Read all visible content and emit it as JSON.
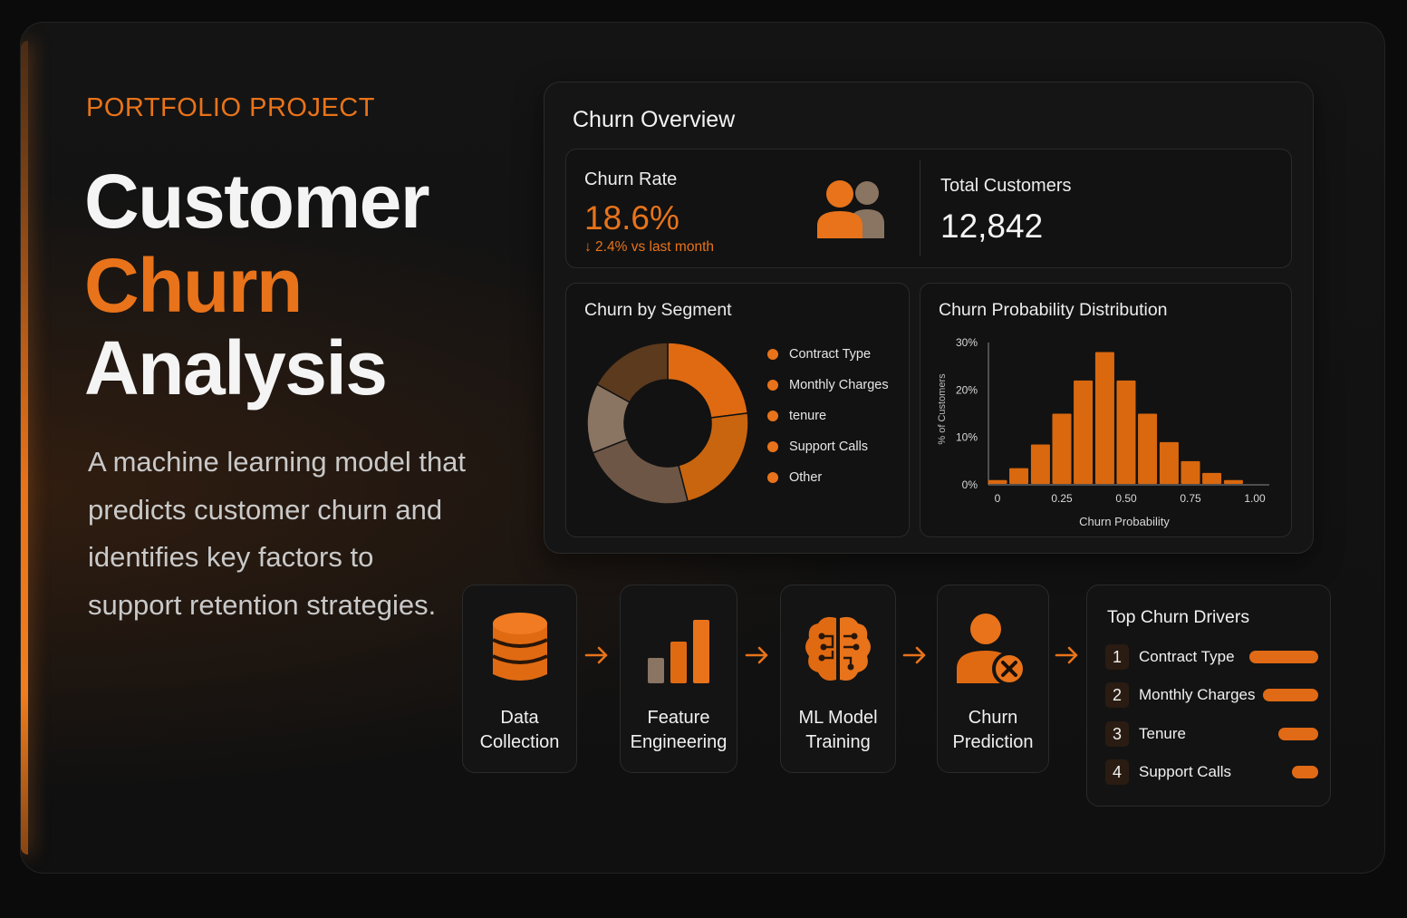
{
  "hero": {
    "eyebrow": "PORTFOLIO PROJECT",
    "title_line1": "Customer",
    "title_line2": "Churn",
    "title_line3": "Analysis",
    "description": "A machine learning model that predicts customer churn and identifies key factors to support retention strategies."
  },
  "overview": {
    "title": "Churn Overview",
    "churn_rate_label": "Churn Rate",
    "churn_rate_value": "18.6%",
    "churn_rate_delta": "↓ 2.4% vs last month",
    "total_customers_label": "Total Customers",
    "total_customers_value": "12,842"
  },
  "segment": {
    "title": "Churn by Segment",
    "legend": [
      {
        "label": "Contract Type",
        "color": "#e8731a"
      },
      {
        "label": "Monthly Charges",
        "color": "#e8731a"
      },
      {
        "label": "tenure",
        "color": "#e8731a"
      },
      {
        "label": "Support Calls",
        "color": "#e8731a"
      },
      {
        "label": "Other",
        "color": "#e8731a"
      }
    ]
  },
  "distribution": {
    "title": "Churn Probability Distribution"
  },
  "chart_data": [
    {
      "type": "pie",
      "title": "Churn by Segment",
      "donut": true,
      "categories": [
        "Contract Type",
        "Monthly Charges",
        "tenure",
        "Support Calls",
        "Other"
      ],
      "values": [
        23,
        23,
        23,
        14,
        17
      ],
      "colors": [
        "#e06a12",
        "#c9650f",
        "#6e5646",
        "#8a7462",
        "#5c3a1e"
      ]
    },
    {
      "type": "bar",
      "title": "Churn Probability Distribution",
      "xlabel": "Churn Probability",
      "ylabel": "% of Customers",
      "x": [
        0,
        0.083,
        0.167,
        0.25,
        0.333,
        0.417,
        0.5,
        0.583,
        0.667,
        0.75,
        0.833,
        0.917,
        1.0
      ],
      "values": [
        1,
        3.5,
        8.5,
        15,
        22,
        28,
        22,
        15,
        9,
        5,
        2.5,
        1,
        0
      ],
      "xticks": [
        "0",
        "0.25",
        "0.50",
        "0.75",
        "1.00"
      ],
      "yticks": [
        "0%",
        "10%",
        "20%",
        "30%"
      ],
      "ylim": [
        0,
        30
      ],
      "xlim": [
        0,
        1
      ],
      "grid": false,
      "color": "#d9680f"
    }
  ],
  "pipeline": {
    "steps": [
      {
        "line1": "Data",
        "line2": "Collection",
        "icon": "database-icon"
      },
      {
        "line1": "Feature",
        "line2": "Engineering",
        "icon": "bar-chart-icon"
      },
      {
        "line1": "ML Model",
        "line2": "Training",
        "icon": "brain-icon"
      },
      {
        "line1": "Churn",
        "line2": "Prediction",
        "icon": "user-remove-icon"
      }
    ]
  },
  "drivers": {
    "title": "Top Churn Drivers",
    "items": [
      {
        "rank": "1",
        "name": "Contract Type",
        "importance": 1.0
      },
      {
        "rank": "2",
        "name": "Monthly Charges",
        "importance": 0.8
      },
      {
        "rank": "3",
        "name": "Tenure",
        "importance": 0.58
      },
      {
        "rank": "4",
        "name": "Support Calls",
        "importance": 0.38
      }
    ]
  },
  "colors": {
    "accent": "#e8731a",
    "background": "#0b0b0b",
    "panel": "#151515"
  }
}
